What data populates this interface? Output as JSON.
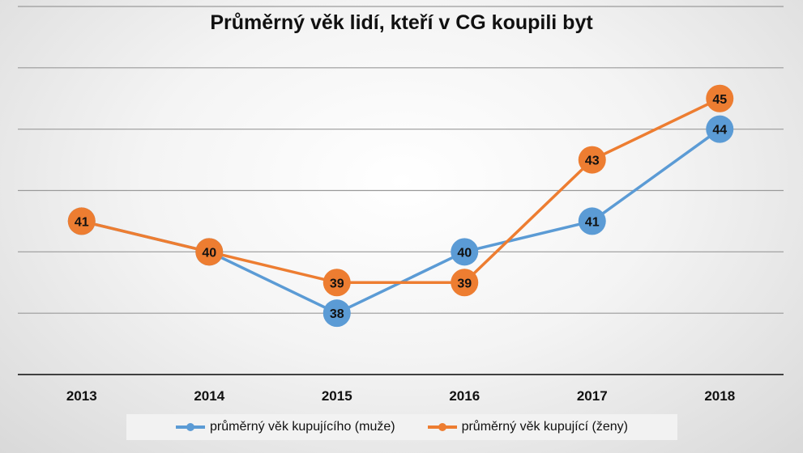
{
  "chart_data": {
    "type": "line",
    "title": "Průměrný věk lidí, kteří v CG koupili byt",
    "categories": [
      "2013",
      "2014",
      "2015",
      "2016",
      "2017",
      "2018"
    ],
    "series": [
      {
        "name": "průměrný věk kupujícího (muže)",
        "color": "#5b9bd5",
        "values": [
          41,
          40,
          38,
          40,
          41,
          44
        ]
      },
      {
        "name": "průměrný věk kupující (ženy)",
        "color": "#ed7d31",
        "values": [
          41,
          40,
          39,
          39,
          43,
          45
        ]
      }
    ],
    "ylim": [
      36,
      48
    ],
    "grid": true,
    "yticks_visible": false,
    "legend": "bottom",
    "data_labels": true
  }
}
